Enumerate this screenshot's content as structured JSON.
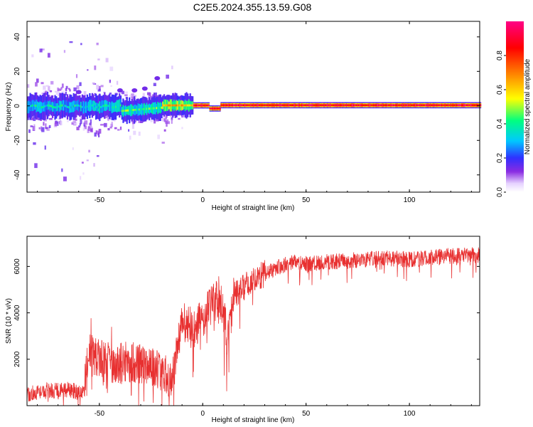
{
  "title": "C2E5.2024.355.13.59.G08",
  "chart_data": [
    {
      "type": "heatmap",
      "xlabel": "Height of straight line (km)",
      "ylabel": "Frequency (Hz)",
      "xlim": [
        -85,
        134
      ],
      "ylim": [
        -50,
        49
      ],
      "x_ticks": [
        -50,
        0,
        50,
        100
      ],
      "y_ticks": [
        -40,
        -20,
        0,
        20,
        40
      ],
      "colorbar": {
        "label": "Normalized spectral amplitude",
        "range": [
          0,
          1
        ],
        "ticks": [
          "0.0",
          "0.2",
          "0.4",
          "0.6",
          "0.8"
        ],
        "colormap": [
          "#ffffff",
          "#e8d8ff",
          "#8a2be2",
          "#3030ff",
          "#00c8ff",
          "#00ff80",
          "#ffff00",
          "#ff8000",
          "#ff0000",
          "#ff0080"
        ]
      },
      "description_points": [
        {
          "x": -85,
          "f": 0.0,
          "amp": 0.3
        },
        {
          "x": -60,
          "f": -0.5,
          "amp": 0.35
        },
        {
          "x": -35,
          "f": -3.0,
          "amp": 0.45
        },
        {
          "x": -20,
          "f": -1.0,
          "amp": 0.6
        },
        {
          "x": -10,
          "f": 0.5,
          "amp": 0.8
        },
        {
          "x": 0,
          "f": 0.5,
          "amp": 0.9
        },
        {
          "x": 5,
          "f": -1.5,
          "amp": 0.85
        },
        {
          "x": 25,
          "f": 0.5,
          "amp": 0.95
        },
        {
          "x": 134,
          "f": 0.5,
          "amp": 1.0
        }
      ]
    },
    {
      "type": "line",
      "xlabel": "Height of straight line (km)",
      "ylabel": "SNR (10 * v/v)",
      "xlim": [
        -85,
        134
      ],
      "ylim": [
        0,
        7300
      ],
      "x_ticks": [
        -50,
        0,
        50,
        100
      ],
      "y_ticks": [
        2000,
        4000,
        6000
      ],
      "color": "#e83030",
      "x": [
        -85,
        -75,
        -65,
        -57,
        -55,
        -50,
        -45,
        -40,
        -35,
        -30,
        -25,
        -20,
        -15,
        -10,
        -5,
        0,
        5,
        8,
        10,
        12,
        15,
        20,
        25,
        30,
        35,
        40,
        45,
        50,
        60,
        70,
        80,
        90,
        100,
        110,
        120,
        134
      ],
      "y": [
        500,
        650,
        700,
        500,
        2200,
        2000,
        1900,
        1800,
        1900,
        1800,
        1600,
        1500,
        1000,
        3700,
        3300,
        3800,
        4400,
        4700,
        4000,
        2700,
        4800,
        5100,
        5400,
        5700,
        5900,
        6100,
        6200,
        6100,
        6200,
        6250,
        6300,
        6350,
        6300,
        6400,
        6450,
        6500
      ]
    }
  ]
}
